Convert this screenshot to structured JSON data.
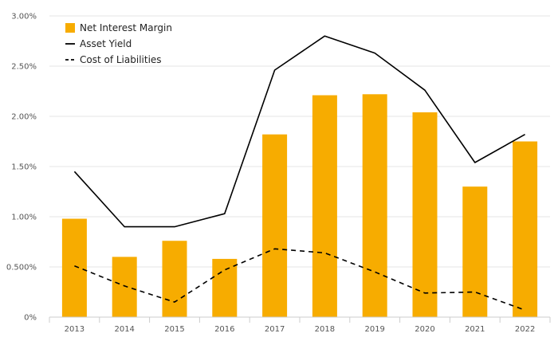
{
  "chart_data": {
    "type": "bar",
    "title": "",
    "xlabel": "",
    "ylabel": "",
    "categories": [
      "2013",
      "2014",
      "2015",
      "2016",
      "2017",
      "2018",
      "2019",
      "2020",
      "2021",
      "2022"
    ],
    "ylim": [
      0,
      3.0
    ],
    "y_ticks": [
      {
        "value": 0,
        "label": "0%"
      },
      {
        "value": 0.5,
        "label": "0.500%"
      },
      {
        "value": 1.0,
        "label": "1.00%"
      },
      {
        "value": 1.5,
        "label": "1.50%"
      },
      {
        "value": 2.0,
        "label": "2.00%"
      },
      {
        "value": 2.5,
        "label": "2.50%"
      },
      {
        "value": 3.0,
        "label": "3.00%"
      }
    ],
    "grid": "horizontal",
    "legend_position": "top-left",
    "series": [
      {
        "name": "Net Interest Margin",
        "type": "bar",
        "color": "#f7ac00",
        "values": [
          0.98,
          0.6,
          0.76,
          0.58,
          1.82,
          2.21,
          2.22,
          2.04,
          1.3,
          1.75
        ]
      },
      {
        "name": "Asset Yield",
        "type": "line",
        "color": "#000000",
        "dash": "solid",
        "values": [
          1.45,
          0.9,
          0.9,
          1.03,
          2.46,
          2.8,
          2.63,
          2.26,
          1.54,
          1.82
        ]
      },
      {
        "name": "Cost of Liabilities",
        "type": "line",
        "color": "#000000",
        "dash": "dashed",
        "values": [
          0.51,
          0.31,
          0.15,
          0.47,
          0.68,
          0.64,
          0.45,
          0.24,
          0.25,
          0.07
        ]
      }
    ]
  }
}
